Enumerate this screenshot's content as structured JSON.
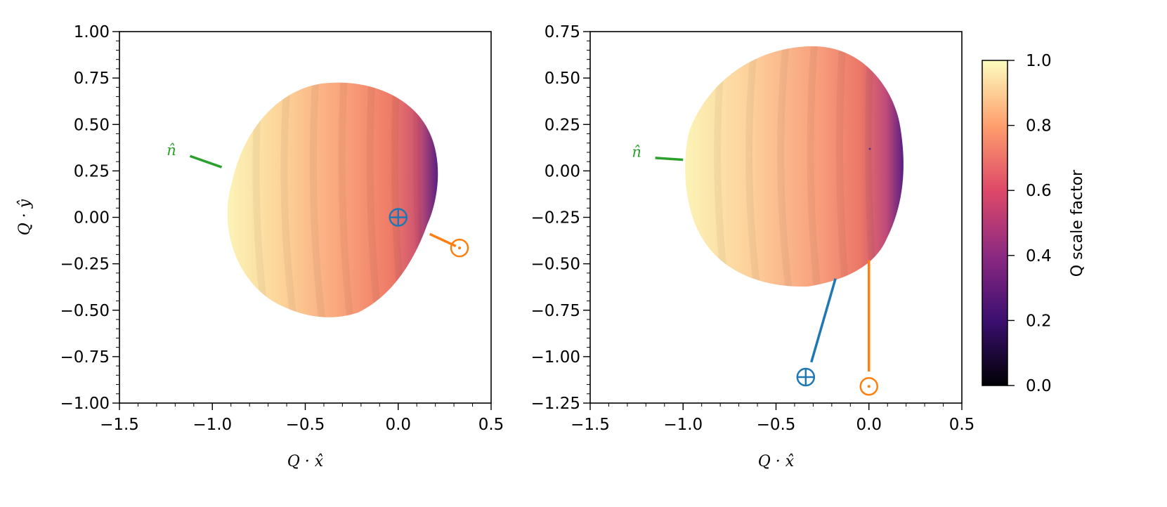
{
  "chart_data": [
    {
      "type": "scatter",
      "xlabel": "Q · x̂",
      "ylabel": "Q · ŷ",
      "xlim": [
        -1.5,
        0.5
      ],
      "ylim": [
        -1.0,
        1.0
      ],
      "xticks": [
        "−1.5",
        "−1.0",
        "−0.5",
        "0.0",
        "0.5"
      ],
      "yticks": [
        "1.00",
        "0.75",
        "0.50",
        "0.25",
        "0.00",
        "−0.25",
        "−0.50",
        "−0.75",
        "−1.00"
      ],
      "grid": false,
      "surface": {
        "approx_center": [
          -0.4,
          0.1
        ],
        "approx_x_range": [
          -0.97,
          0.22
        ],
        "approx_y_range": [
          -0.54,
          0.74
        ]
      },
      "annotations": [
        {
          "label": "n̂",
          "kind": "normal",
          "color": "#2ca02c",
          "text_at": [
            -1.22,
            0.35
          ],
          "line_from": [
            -1.12,
            0.33
          ],
          "line_to": [
            -0.95,
            0.27
          ]
        },
        {
          "label": "⊕",
          "kind": "earth",
          "color": "#1f77b4",
          "at": [
            0.0,
            0.0
          ]
        },
        {
          "label": "⊙",
          "kind": "sun",
          "color": "#ff7f0e",
          "at": [
            0.33,
            -0.165
          ],
          "line_from": [
            0.17,
            -0.09
          ],
          "line_to": [
            0.31,
            -0.155
          ]
        }
      ]
    },
    {
      "type": "scatter",
      "xlabel": "Q · x̂",
      "ylabel": "",
      "xlim": [
        -1.5,
        0.5
      ],
      "ylim": [
        -1.25,
        0.75
      ],
      "xticks": [
        "−1.5",
        "−1.0",
        "−0.5",
        "0.0",
        "0.5"
      ],
      "yticks": [
        "0.75",
        "0.50",
        "0.25",
        "0.00",
        "−0.25",
        "−0.50",
        "−0.75",
        "−1.00",
        "−1.25"
      ],
      "grid": false,
      "surface": {
        "approx_center": [
          -0.4,
          0.03
        ],
        "approx_x_range": [
          -0.98,
          0.19
        ],
        "approx_y_range": [
          -0.62,
          0.67
        ]
      },
      "annotations": [
        {
          "label": "n̂",
          "kind": "normal",
          "color": "#2ca02c",
          "text_at": [
            -1.25,
            0.09
          ],
          "line_from": [
            -1.15,
            0.07
          ],
          "line_to": [
            -1.0,
            0.06
          ]
        },
        {
          "label": "⊕",
          "kind": "earth",
          "color": "#1f77b4",
          "at": [
            -0.34,
            -1.11
          ],
          "line_from": [
            -0.31,
            -1.03
          ],
          "line_to": [
            -0.18,
            -0.58
          ]
        },
        {
          "label": "⊙",
          "kind": "sun",
          "color": "#ff7f0e",
          "at": [
            0.0,
            -1.16
          ],
          "line_from": [
            0.0,
            -1.08
          ],
          "line_to": [
            0.0,
            -0.48
          ]
        }
      ]
    }
  ],
  "colorbar": {
    "label": "Q scale factor",
    "colormap": "magma",
    "range": [
      0.0,
      1.0
    ],
    "ticks": [
      "1.0",
      "0.8",
      "0.6",
      "0.4",
      "0.2",
      "0.0"
    ],
    "tick_values": [
      1.0,
      0.8,
      0.6,
      0.4,
      0.2,
      0.0
    ],
    "stops": [
      "#000004",
      "#3b0f70",
      "#8c2981",
      "#de4968",
      "#fe9f6d",
      "#fcfdbf"
    ]
  }
}
